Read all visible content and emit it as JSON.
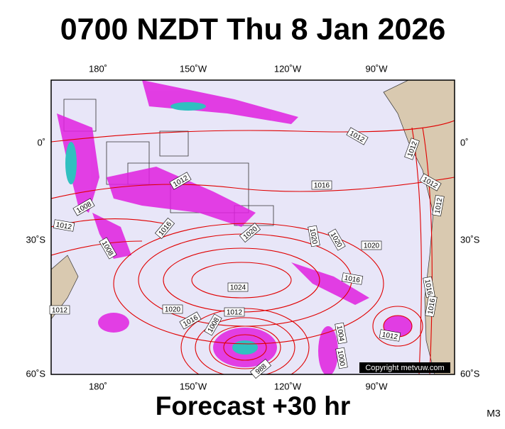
{
  "header": {
    "title": "0700 NZDT Thu 8 Jan 2026"
  },
  "map": {
    "lon_labels": [
      "180˚",
      "150˚W",
      "120˚W",
      "90˚W"
    ],
    "lat_labels": [
      "0˚",
      "30˚S",
      "60˚S"
    ],
    "isobar_labels": [
      "1012",
      "1012",
      "1012",
      "1012",
      "1016",
      "1012",
      "1008",
      "1012",
      "1016",
      "1020",
      "1020",
      "1020",
      "1020",
      "1008",
      "1016",
      "1024",
      "1016",
      "1016",
      "1020",
      "1012",
      "1016",
      "1008",
      "1012",
      "1004",
      "1012",
      "1000",
      "988"
    ],
    "copyright": "Copyright metvuw.com"
  },
  "footer": {
    "forecast": "Forecast +30 hr",
    "model": "M3"
  }
}
